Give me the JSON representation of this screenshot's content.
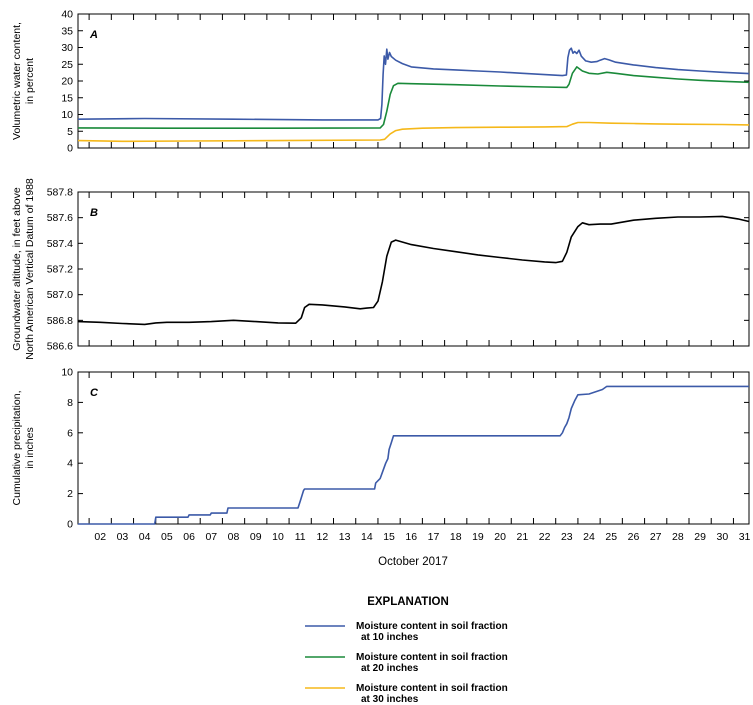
{
  "chart_data": [
    {
      "panel": "A",
      "type": "line",
      "ylabel": [
        "Volumetric water content,",
        "in percent"
      ],
      "ylim": [
        0,
        40
      ],
      "yticks": [
        "0",
        "5",
        "10",
        "15",
        "20",
        "25",
        "30",
        "35",
        "40"
      ],
      "xlim": [
        1,
        31.2
      ],
      "series": [
        {
          "name": "Moisture content in soil fraction at 10 inches",
          "color": "#3c5aa8",
          "points": [
            [
              1,
              8.6
            ],
            [
              4,
              8.8
            ],
            [
              8,
              8.6
            ],
            [
              12,
              8.4
            ],
            [
              14.5,
              8.4
            ],
            [
              14.62,
              8.8
            ],
            [
              14.68,
              13
            ],
            [
              14.73,
              22
            ],
            [
              14.78,
              27.5
            ],
            [
              14.84,
              25
            ],
            [
              14.9,
              29.5
            ],
            [
              14.95,
              26.5
            ],
            [
              15.02,
              28.5
            ],
            [
              15.1,
              27.3
            ],
            [
              15.3,
              26.2
            ],
            [
              15.6,
              25.2
            ],
            [
              16,
              24.2
            ],
            [
              17,
              23.6
            ],
            [
              18,
              23.3
            ],
            [
              19,
              23
            ],
            [
              20,
              22.7
            ],
            [
              21,
              22.3
            ],
            [
              22,
              21.9
            ],
            [
              22.8,
              21.6
            ],
            [
              22.98,
              21.8
            ],
            [
              23.05,
              27
            ],
            [
              23.12,
              29.2
            ],
            [
              23.2,
              29.8
            ],
            [
              23.28,
              28.3
            ],
            [
              23.35,
              28.8
            ],
            [
              23.45,
              28.2
            ],
            [
              23.55,
              29.2
            ],
            [
              23.65,
              27.4
            ],
            [
              23.85,
              26
            ],
            [
              24.1,
              25.6
            ],
            [
              24.35,
              25.8
            ],
            [
              24.5,
              26.2
            ],
            [
              24.7,
              26.7
            ],
            [
              24.9,
              26.3
            ],
            [
              25.2,
              25.6
            ],
            [
              26,
              24.8
            ],
            [
              27,
              24
            ],
            [
              28,
              23.4
            ],
            [
              29,
              23
            ],
            [
              30,
              22.6
            ],
            [
              31.2,
              22.2
            ]
          ]
        },
        {
          "name": "Moisture content in soil fraction at 20 inches",
          "color": "#1a8a3a",
          "points": [
            [
              1,
              6
            ],
            [
              5,
              5.9
            ],
            [
              10,
              5.9
            ],
            [
              14.6,
              6
            ],
            [
              14.75,
              7
            ],
            [
              14.9,
              11
            ],
            [
              15.05,
              16
            ],
            [
              15.2,
              18.6
            ],
            [
              15.4,
              19.3
            ],
            [
              16,
              19.2
            ],
            [
              18,
              18.9
            ],
            [
              20,
              18.5
            ],
            [
              22,
              18.2
            ],
            [
              23,
              18.1
            ],
            [
              23.1,
              19
            ],
            [
              23.25,
              22.3
            ],
            [
              23.45,
              24.2
            ],
            [
              23.7,
              23
            ],
            [
              24,
              22.3
            ],
            [
              24.4,
              22.1
            ],
            [
              24.8,
              22.6
            ],
            [
              25.2,
              22.3
            ],
            [
              26,
              21.6
            ],
            [
              27,
              21.1
            ],
            [
              28,
              20.6
            ],
            [
              29,
              20.2
            ],
            [
              30,
              19.9
            ],
            [
              31.2,
              19.6
            ]
          ]
        },
        {
          "name": "Moisture content in soil fraction at 30 inches",
          "color": "#f5b81a",
          "points": [
            [
              1,
              2.2
            ],
            [
              3,
              2
            ],
            [
              6,
              2.1
            ],
            [
              10,
              2.2
            ],
            [
              14.6,
              2.4
            ],
            [
              14.8,
              2.6
            ],
            [
              15.05,
              4.2
            ],
            [
              15.3,
              5.2
            ],
            [
              15.6,
              5.6
            ],
            [
              16.5,
              5.9
            ],
            [
              18,
              6.1
            ],
            [
              20,
              6.2
            ],
            [
              22,
              6.3
            ],
            [
              23,
              6.4
            ],
            [
              23.25,
              7.1
            ],
            [
              23.5,
              7.6
            ],
            [
              24,
              7.6
            ],
            [
              25,
              7.4
            ],
            [
              26,
              7.3
            ],
            [
              27,
              7.2
            ],
            [
              28,
              7.1
            ],
            [
              30,
              7
            ],
            [
              31.2,
              6.9
            ]
          ]
        }
      ]
    },
    {
      "panel": "B",
      "type": "line",
      "ylabel": [
        "Groundwater altitude, in feet above",
        "North American Vertical Datum of 1988"
      ],
      "ylim": [
        586.6,
        587.8
      ],
      "yticks": [
        "586.6",
        "586.8",
        "587.0",
        "587.2",
        "587.4",
        "587.6",
        "587.8"
      ],
      "xlim": [
        1,
        31.2
      ],
      "series": [
        {
          "name": "",
          "color": "#000000",
          "points": [
            [
              1,
              586.79
            ],
            [
              2,
              586.785
            ],
            [
              3,
              586.775
            ],
            [
              4,
              586.768
            ],
            [
              4.5,
              586.78
            ],
            [
              5,
              586.785
            ],
            [
              6,
              586.785
            ],
            [
              7,
              586.79
            ],
            [
              8,
              586.8
            ],
            [
              9,
              586.79
            ],
            [
              10,
              586.78
            ],
            [
              10.8,
              586.778
            ],
            [
              11.05,
              586.82
            ],
            [
              11.2,
              586.9
            ],
            [
              11.4,
              586.925
            ],
            [
              12,
              586.92
            ],
            [
              13,
              586.905
            ],
            [
              13.7,
              586.89
            ],
            [
              14,
              586.895
            ],
            [
              14.3,
              586.9
            ],
            [
              14.5,
              586.95
            ],
            [
              14.7,
              587.1
            ],
            [
              14.9,
              587.3
            ],
            [
              15.1,
              587.41
            ],
            [
              15.3,
              587.425
            ],
            [
              16,
              587.39
            ],
            [
              17,
              587.36
            ],
            [
              18,
              587.335
            ],
            [
              19,
              587.31
            ],
            [
              20,
              587.29
            ],
            [
              21,
              587.27
            ],
            [
              22,
              587.255
            ],
            [
              22.5,
              587.25
            ],
            [
              22.8,
              587.26
            ],
            [
              23,
              587.33
            ],
            [
              23.2,
              587.45
            ],
            [
              23.5,
              587.53
            ],
            [
              23.7,
              587.56
            ],
            [
              24,
              587.545
            ],
            [
              24.5,
              587.55
            ],
            [
              25,
              587.55
            ],
            [
              26,
              587.58
            ],
            [
              27,
              587.595
            ],
            [
              28,
              587.605
            ],
            [
              29,
              587.605
            ],
            [
              30,
              587.61
            ],
            [
              30.7,
              587.59
            ],
            [
              31.2,
              587.57
            ]
          ]
        }
      ]
    },
    {
      "panel": "C",
      "type": "line",
      "ylabel": [
        "Cumulative precipitation,",
        "in inches"
      ],
      "ylim": [
        0,
        10
      ],
      "yticks": [
        "0",
        "2",
        "4",
        "6",
        "8",
        "10"
      ],
      "xlim": [
        1,
        31.2
      ],
      "series": [
        {
          "name": "",
          "color": "#3c5aa8",
          "points": [
            [
              1,
              0
            ],
            [
              4.45,
              0
            ],
            [
              4.5,
              0.45
            ],
            [
              5.95,
              0.45
            ],
            [
              6,
              0.6
            ],
            [
              6.95,
              0.6
            ],
            [
              7,
              0.72
            ],
            [
              7.7,
              0.72
            ],
            [
              7.75,
              1.05
            ],
            [
              10.9,
              1.05
            ],
            [
              11,
              1.5
            ],
            [
              11.15,
              2.2
            ],
            [
              11.2,
              2.3
            ],
            [
              14.35,
              2.3
            ],
            [
              14.4,
              2.7
            ],
            [
              14.6,
              3
            ],
            [
              14.7,
              3.4
            ],
            [
              14.85,
              4
            ],
            [
              14.95,
              4.3
            ],
            [
              15,
              4.9
            ],
            [
              15.1,
              5.35
            ],
            [
              15.2,
              5.8
            ],
            [
              22.7,
              5.8
            ],
            [
              22.8,
              6
            ],
            [
              22.9,
              6.35
            ],
            [
              23,
              6.6
            ],
            [
              23.1,
              7
            ],
            [
              23.2,
              7.6
            ],
            [
              23.35,
              8.1
            ],
            [
              23.5,
              8.5
            ],
            [
              24,
              8.55
            ],
            [
              24.3,
              8.7
            ],
            [
              24.6,
              8.85
            ],
            [
              24.8,
              9.05
            ],
            [
              31.2,
              9.05
            ]
          ]
        }
      ]
    }
  ],
  "xaxis": {
    "title": "October 2017",
    "ticks": [
      "02",
      "03",
      "04",
      "05",
      "06",
      "07",
      "08",
      "09",
      "10",
      "11",
      "12",
      "13",
      "14",
      "15",
      "16",
      "17",
      "18",
      "19",
      "20",
      "21",
      "22",
      "23",
      "24",
      "25",
      "26",
      "27",
      "28",
      "29",
      "30",
      "31"
    ]
  },
  "legend": {
    "title": "EXPLANATION",
    "items": [
      {
        "line1": "Moisture content in soil fraction",
        "line2": "at 10 inches",
        "color": "#3c5aa8"
      },
      {
        "line1": "Moisture content in soil fraction",
        "line2": "at 20 inches",
        "color": "#1a8a3a"
      },
      {
        "line1": "Moisture content in soil fraction",
        "line2": "at 30 inches",
        "color": "#f5b81a"
      }
    ]
  }
}
